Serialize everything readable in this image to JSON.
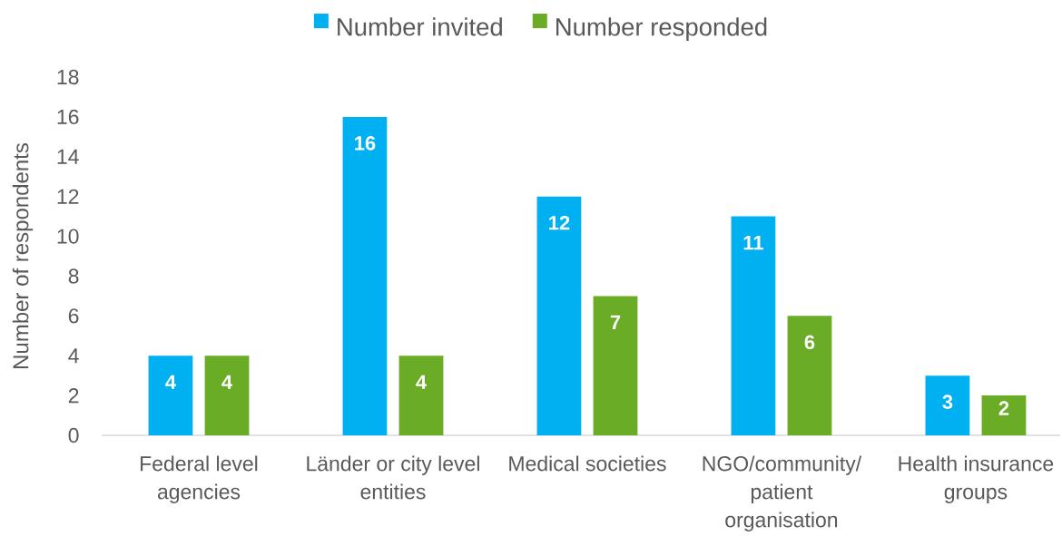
{
  "chart_data": {
    "type": "bar",
    "ylabel": "Number of respondents",
    "categories": [
      "Federal level agencies",
      "Länder or city level entities",
      "Medical societies",
      "NGO/community/ patient organisation",
      "Health insurance groups"
    ],
    "series": [
      {
        "name": "Number invited",
        "color": "#00b0f0",
        "values": [
          4,
          16,
          12,
          11,
          3
        ]
      },
      {
        "name": "Number responded",
        "color": "#6aac25",
        "values": [
          4,
          4,
          7,
          6,
          2
        ]
      }
    ],
    "ylim": [
      0,
      18
    ],
    "yticks": [
      0,
      2,
      4,
      6,
      8,
      10,
      12,
      14,
      16,
      18
    ],
    "data_labels": true,
    "legend": "top"
  }
}
